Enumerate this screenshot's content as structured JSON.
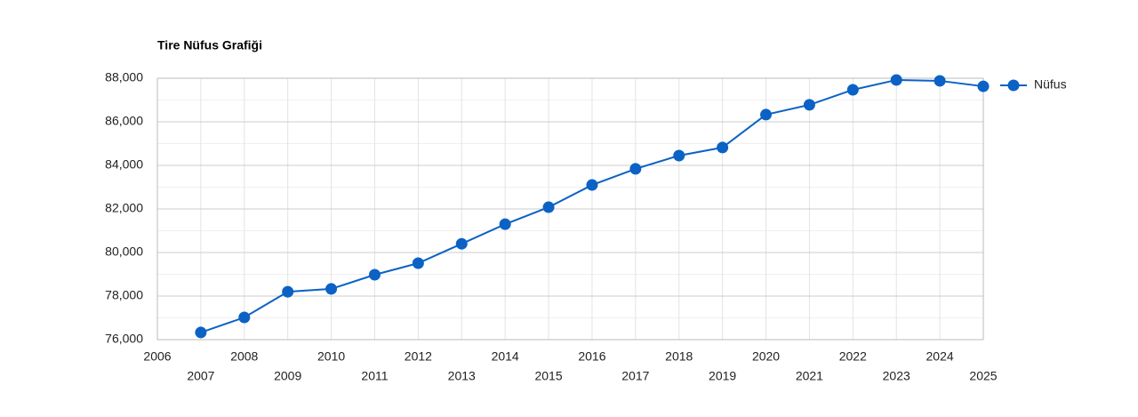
{
  "chart_data": {
    "type": "line",
    "title": "Tire Nüfus Grafiği",
    "x": [
      2007,
      2008,
      2009,
      2010,
      2011,
      2012,
      2013,
      2014,
      2015,
      2016,
      2017,
      2018,
      2019,
      2020,
      2021,
      2022,
      2023,
      2024,
      2025
    ],
    "series": [
      {
        "name": "Nüfus",
        "color": "#0b62c4",
        "values": [
          76330,
          77020,
          78200,
          78330,
          78980,
          79510,
          80400,
          81300,
          82080,
          83100,
          83840,
          84450,
          84820,
          86330,
          86780,
          87470,
          87920,
          87880,
          87630
        ]
      }
    ],
    "xlim": [
      2006,
      2025
    ],
    "xticks": [
      2006,
      2007,
      2008,
      2009,
      2010,
      2011,
      2012,
      2013,
      2014,
      2015,
      2016,
      2017,
      2018,
      2019,
      2020,
      2021,
      2022,
      2023,
      2024,
      2025
    ],
    "ylim": [
      76000,
      88000
    ],
    "yticks": [
      {
        "value": 76000,
        "label": "76,000"
      },
      {
        "value": 78000,
        "label": "78,000"
      },
      {
        "value": 80000,
        "label": "80,000"
      },
      {
        "value": 82000,
        "label": "82,000"
      },
      {
        "value": 84000,
        "label": "84,000"
      },
      {
        "value": 86000,
        "label": "86,000"
      },
      {
        "value": 88000,
        "label": "88,000"
      }
    ],
    "grid": true,
    "legend": "right"
  }
}
